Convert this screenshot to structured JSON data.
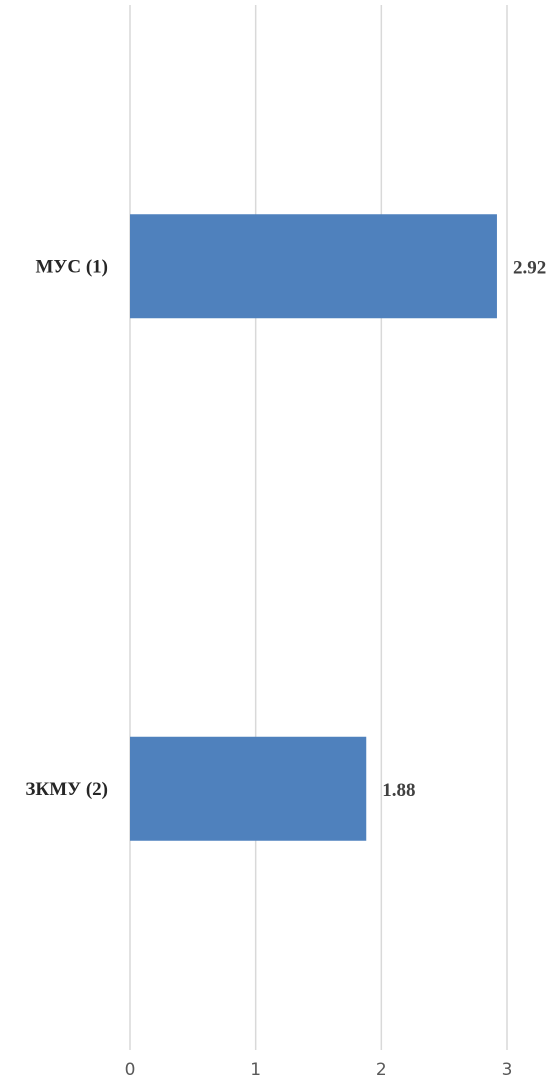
{
  "chart_data": {
    "type": "bar",
    "orientation": "horizontal",
    "title": "",
    "xlabel": "",
    "ylabel": "",
    "categories": [
      "МУС (1)",
      "ЗКМУ (2)"
    ],
    "values": [
      2.92,
      1.88
    ],
    "data_labels": [
      "2.92",
      "1.88"
    ],
    "xlim": [
      0,
      3
    ],
    "x_ticks": [
      0,
      1,
      2,
      3
    ],
    "x_tick_labels": [
      "0",
      "1",
      "2",
      "3"
    ],
    "grid": "vertical",
    "legend": "none",
    "bar_color": "#4f81bd"
  }
}
